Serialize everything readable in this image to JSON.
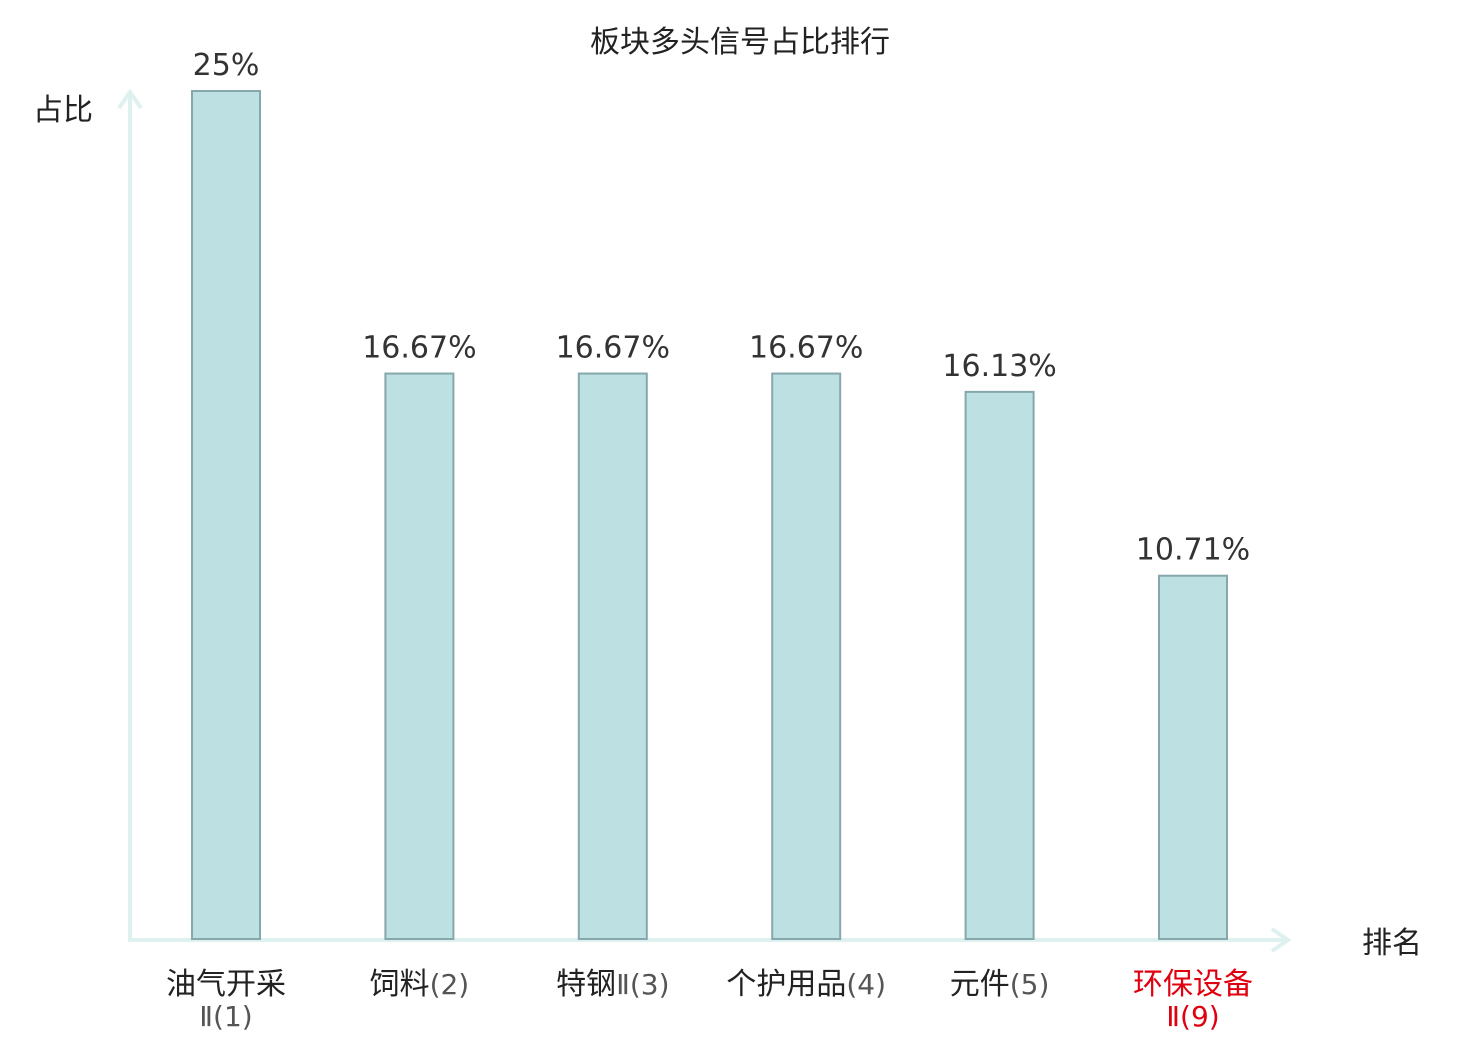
{
  "chart_data": {
    "type": "bar",
    "title": "板块多头信号占比排行",
    "ylabel": "占比",
    "xlabel": "排名",
    "ylim": [
      0,
      25
    ],
    "grid": false,
    "categories": [
      {
        "name": "油气开采",
        "suffix": "Ⅱ(1)",
        "highlight": false
      },
      {
        "name": "饲料",
        "suffix": "(2)",
        "highlight": false
      },
      {
        "name": "特钢",
        "suffix": "Ⅱ(3)",
        "highlight": false
      },
      {
        "name": "个护用品",
        "suffix": "(4)",
        "highlight": false
      },
      {
        "name": "元件",
        "suffix": "(5)",
        "highlight": false
      },
      {
        "name": "环保设备",
        "suffix": "Ⅱ(9)",
        "highlight": true
      }
    ],
    "values": [
      25,
      16.67,
      16.67,
      16.67,
      16.13,
      10.71
    ],
    "value_labels": [
      "25%",
      "16.67%",
      "16.67%",
      "16.67%",
      "16.13%",
      "10.71%"
    ],
    "colors": {
      "bar_fill": "#bde0e2",
      "bar_stroke": "#86a7ab",
      "axis": "#dff1ef",
      "highlight_text": "#e0000f",
      "text": "#222222"
    }
  }
}
